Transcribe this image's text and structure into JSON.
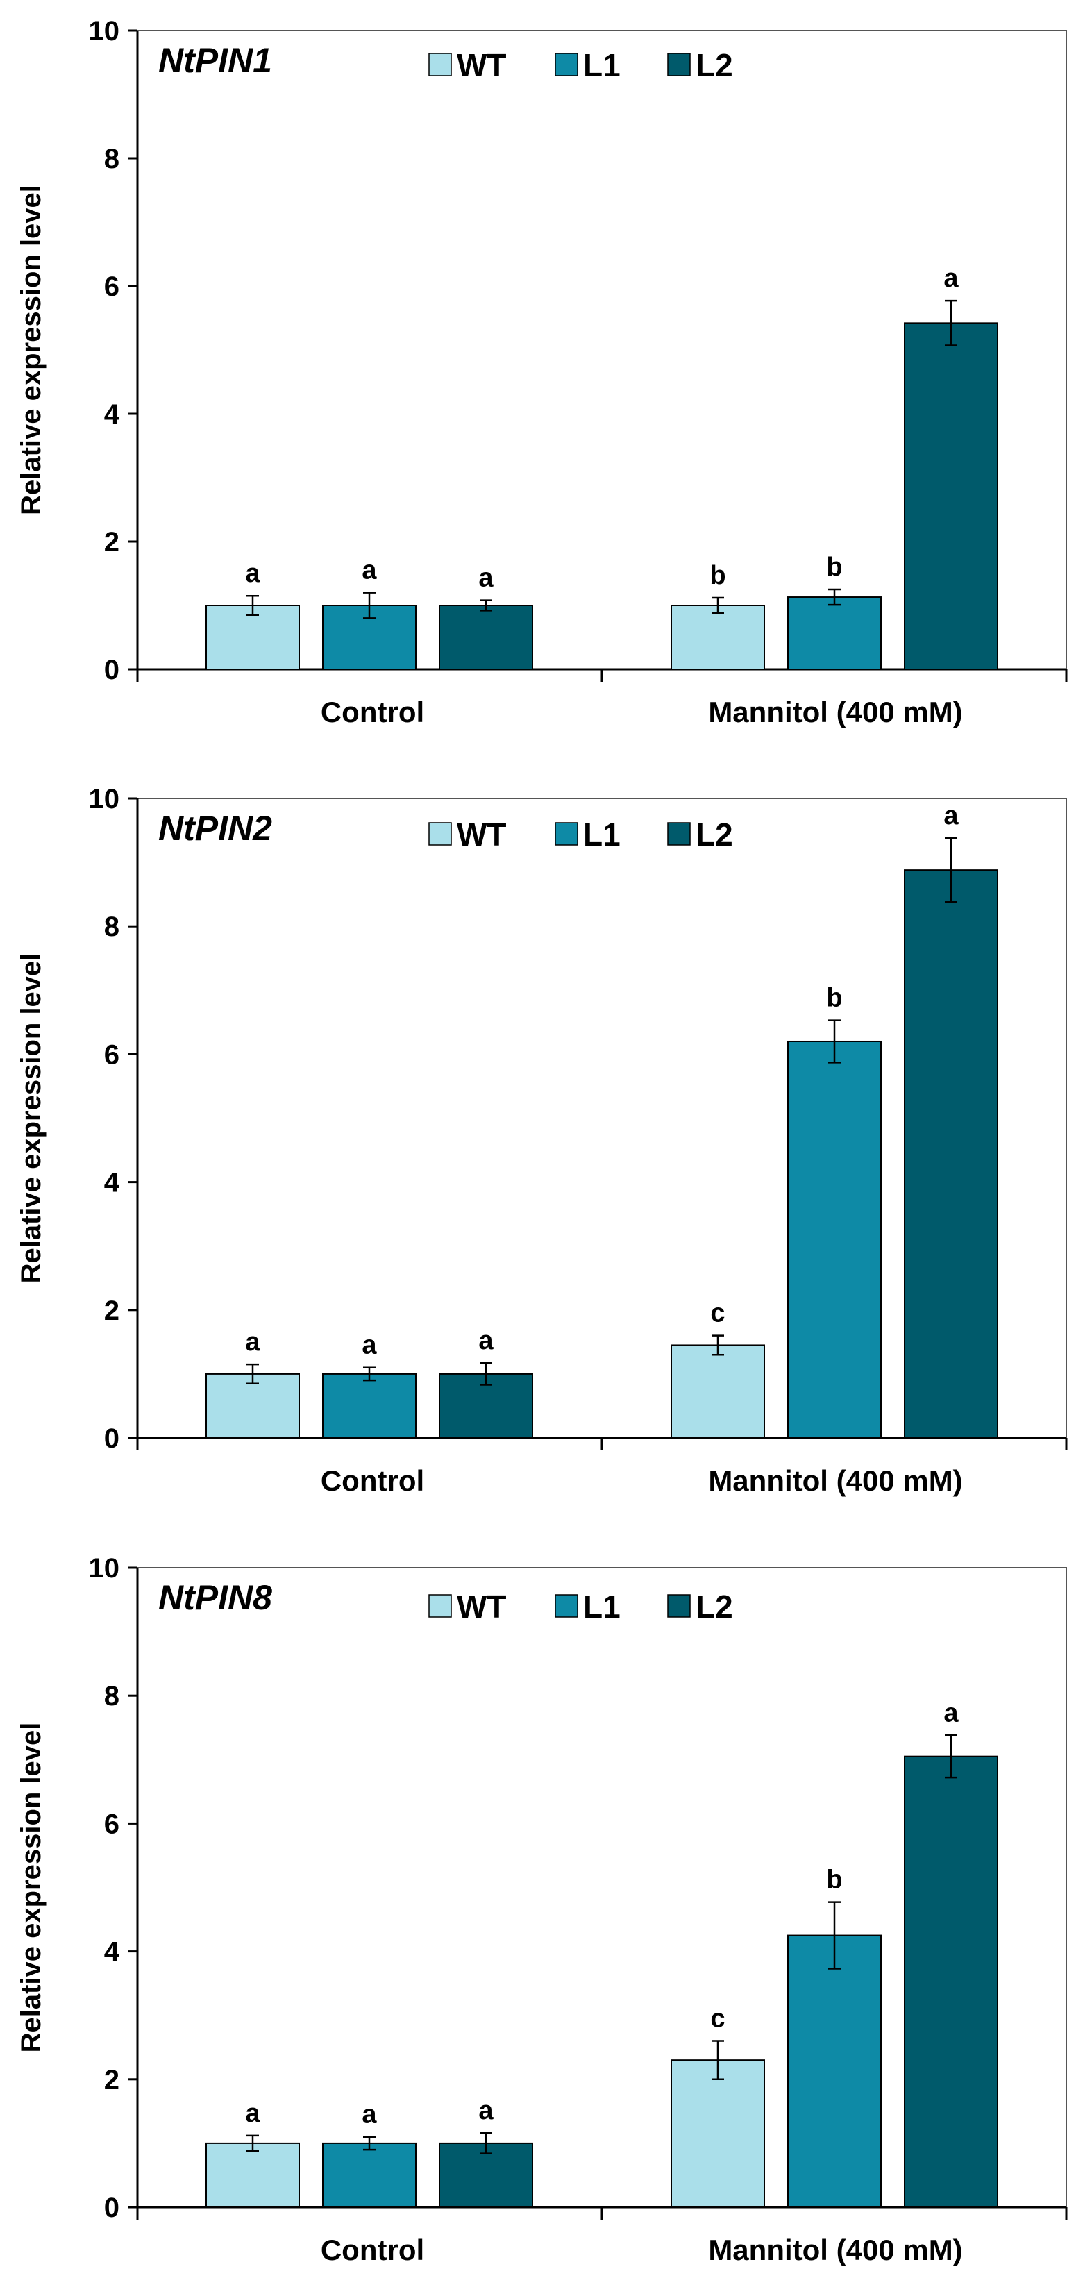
{
  "colors": {
    "WT": "#aadfea",
    "L1": "#0e8aa6",
    "L2": "#005a6b",
    "axis": "#000000",
    "bar_stroke": "#000000"
  },
  "chart_data": [
    {
      "type": "bar",
      "title": "NtPIN1",
      "xlabel": "",
      "ylabel": "Relative expression level",
      "ylim": [
        0,
        10
      ],
      "yticks": [
        "0",
        "2",
        "4",
        "6",
        "8",
        "10"
      ],
      "categories": [
        "Control",
        "Mannitol (400 mM)"
      ],
      "legend_position": "top",
      "series": [
        {
          "name": "WT",
          "values": [
            1.0,
            1.0
          ],
          "errors": [
            0.15,
            0.12
          ],
          "letters": [
            "a",
            "b"
          ]
        },
        {
          "name": "L1",
          "values": [
            1.0,
            1.13
          ],
          "errors": [
            0.2,
            0.12
          ],
          "letters": [
            "a",
            "b"
          ]
        },
        {
          "name": "L2",
          "values": [
            1.0,
            5.42
          ],
          "errors": [
            0.08,
            0.35
          ],
          "letters": [
            "a",
            "a"
          ]
        }
      ]
    },
    {
      "type": "bar",
      "title": "NtPIN2",
      "xlabel": "",
      "ylabel": "Relative expression level",
      "ylim": [
        0,
        10
      ],
      "yticks": [
        "0",
        "2",
        "4",
        "6",
        "8",
        "10"
      ],
      "categories": [
        "Control",
        "Mannitol (400 mM)"
      ],
      "legend_position": "top",
      "series": [
        {
          "name": "WT",
          "values": [
            1.0,
            1.45
          ],
          "errors": [
            0.15,
            0.15
          ],
          "letters": [
            "a",
            "c"
          ]
        },
        {
          "name": "L1",
          "values": [
            1.0,
            6.2
          ],
          "errors": [
            0.1,
            0.33
          ],
          "letters": [
            "a",
            "b"
          ]
        },
        {
          "name": "L2",
          "values": [
            1.0,
            8.88
          ],
          "errors": [
            0.17,
            0.5
          ],
          "letters": [
            "a",
            "a"
          ]
        }
      ]
    },
    {
      "type": "bar",
      "title": "NtPIN8",
      "xlabel": "",
      "ylabel": "Relative expression level",
      "ylim": [
        0,
        10
      ],
      "yticks": [
        "0",
        "2",
        "4",
        "6",
        "8",
        "10"
      ],
      "categories": [
        "Control",
        "Mannitol (400 mM)"
      ],
      "legend_position": "top",
      "series": [
        {
          "name": "WT",
          "values": [
            1.0,
            2.3
          ],
          "errors": [
            0.12,
            0.3
          ],
          "letters": [
            "a",
            "c"
          ]
        },
        {
          "name": "L1",
          "values": [
            1.0,
            4.25
          ],
          "errors": [
            0.1,
            0.52
          ],
          "letters": [
            "a",
            "b"
          ]
        },
        {
          "name": "L2",
          "values": [
            1.0,
            7.05
          ],
          "errors": [
            0.16,
            0.33
          ],
          "letters": [
            "a",
            "a"
          ]
        }
      ]
    }
  ]
}
